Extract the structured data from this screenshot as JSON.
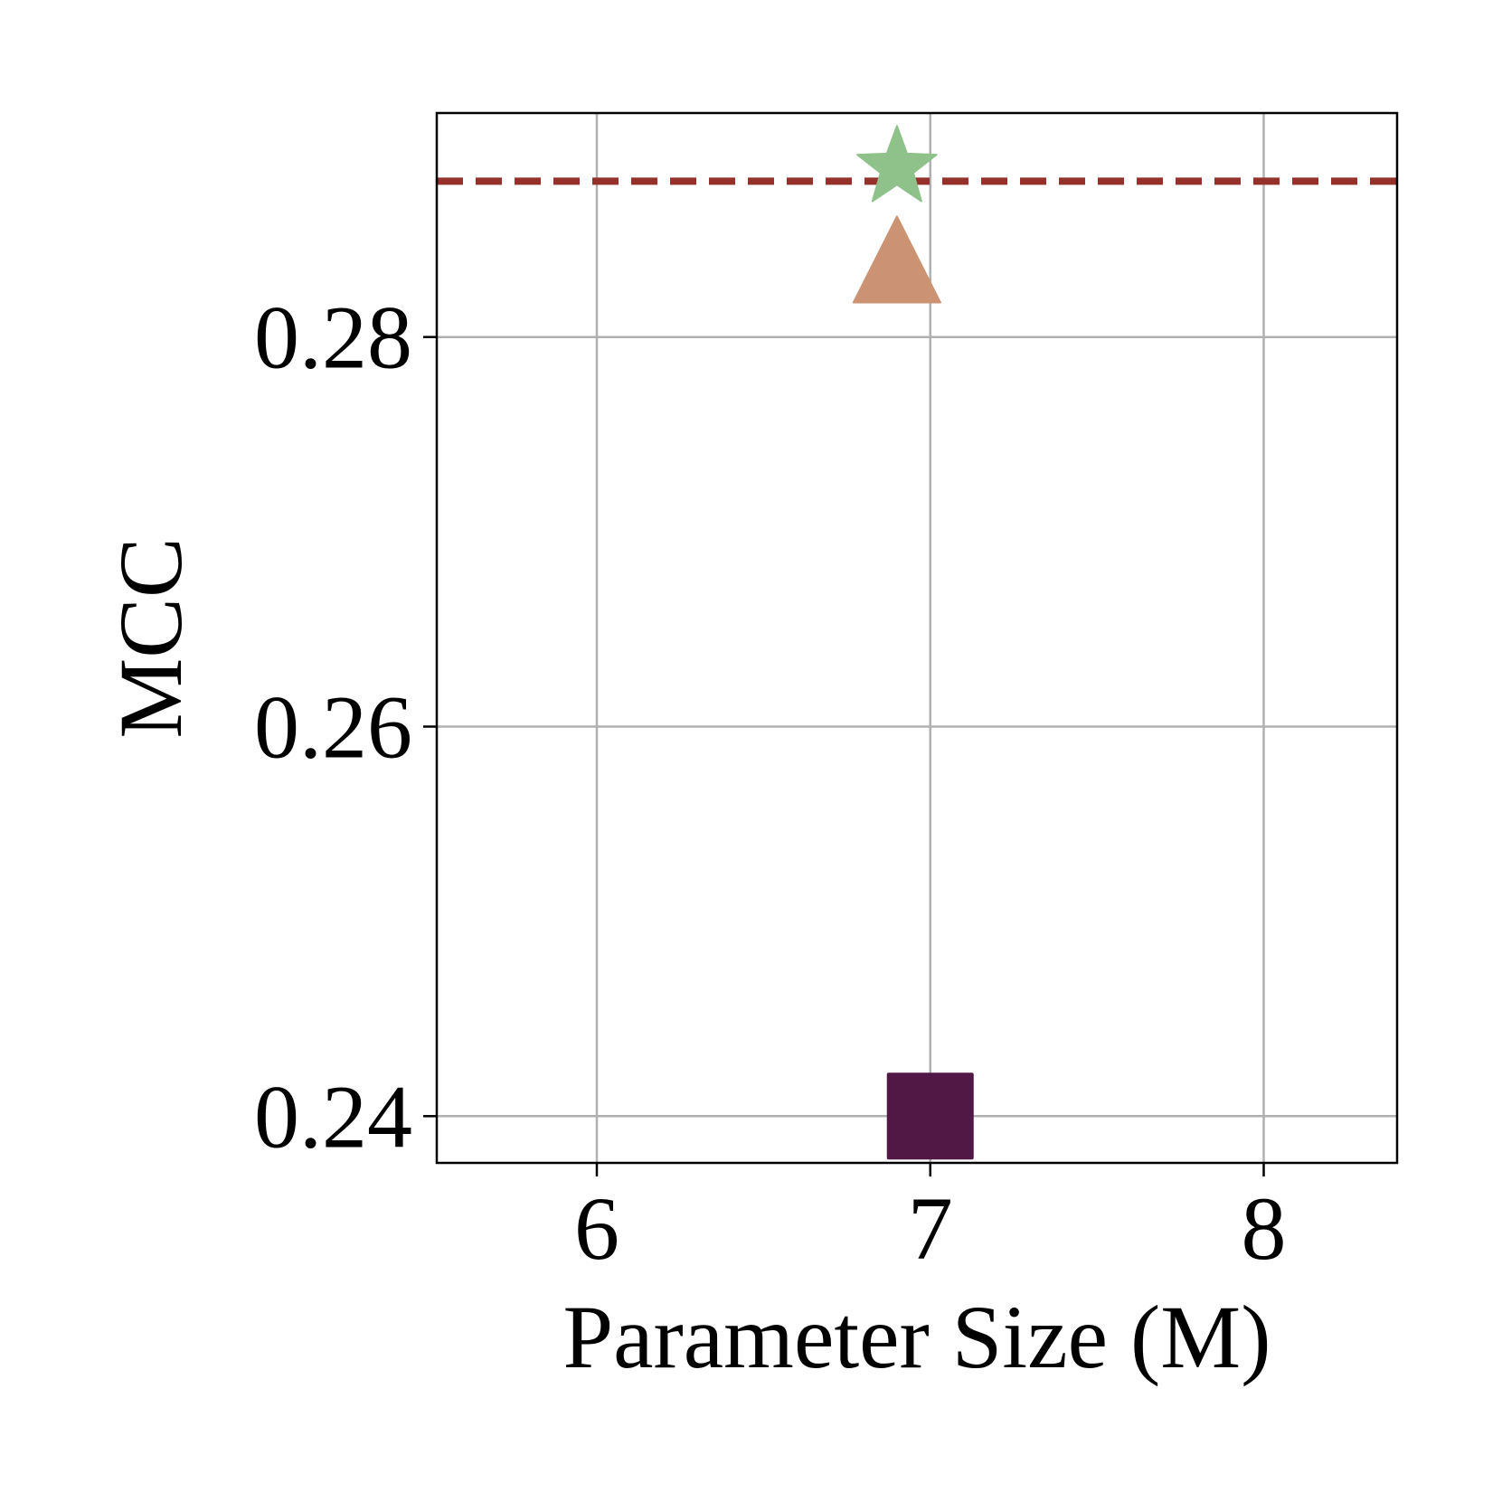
{
  "chart_data": {
    "type": "scatter",
    "title": "",
    "xlabel": "Parameter Size (M)",
    "ylabel": "MCC",
    "xlim": [
      5.52,
      8.4
    ],
    "ylim": [
      0.2376,
      0.2915
    ],
    "xticks": [
      6,
      7,
      8
    ],
    "yticks": [
      0.24,
      0.26,
      0.28
    ],
    "xtick_labels": [
      "6",
      "7",
      "8"
    ],
    "ytick_labels": [
      "0.24",
      "0.26",
      "0.28"
    ],
    "grid": true,
    "series": [
      {
        "marker": "star",
        "color": "#8fc28a",
        "points": [
          {
            "x": 6.9,
            "y": 0.2887
          }
        ]
      },
      {
        "marker": "triangle",
        "color": "#cc9274",
        "points": [
          {
            "x": 6.9,
            "y": 0.2834
          }
        ]
      },
      {
        "marker": "square",
        "color": "#511845",
        "points": [
          {
            "x": 7.0,
            "y": 0.24
          }
        ]
      }
    ],
    "reference_lines": [
      {
        "orientation": "horizontal",
        "y": 0.288,
        "style": "dashed",
        "color": "#96302a"
      }
    ]
  }
}
